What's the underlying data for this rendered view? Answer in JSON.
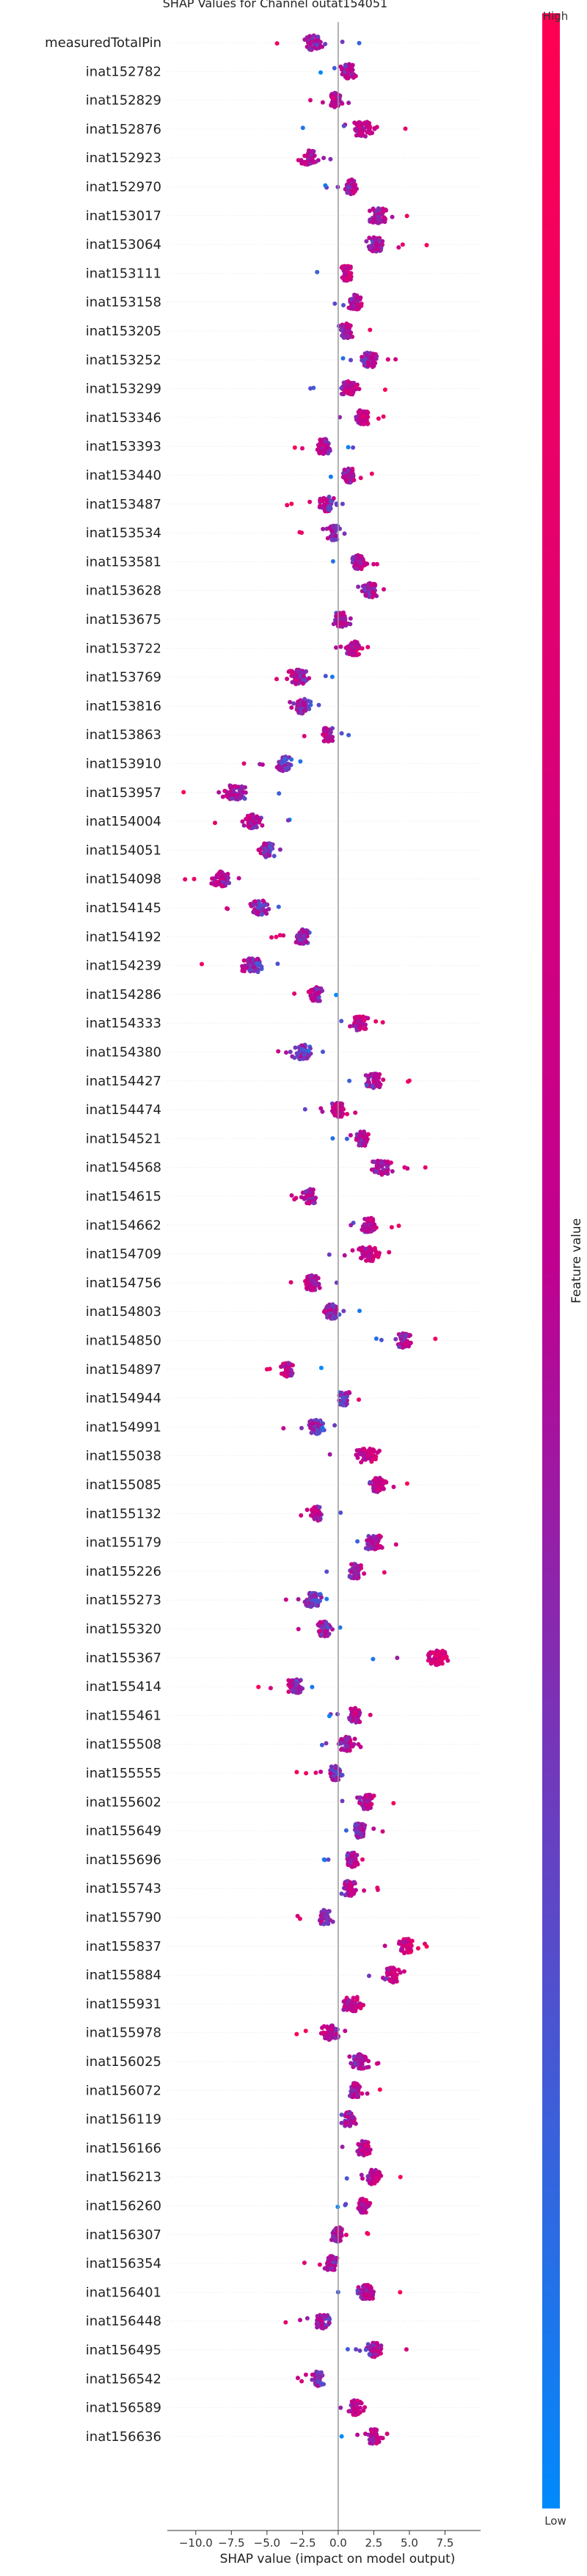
{
  "chart_data": {
    "type": "scatter",
    "subtype": "shap-beeswarm",
    "title": "SHAP Values for Channel outat154051",
    "xlabel": "SHAP value (impact on model output)",
    "xlim": [
      -12,
      10
    ],
    "xticks": [
      -10.0,
      -7.5,
      -5.0,
      -2.5,
      0.0,
      2.5,
      5.0,
      7.5
    ],
    "xtick_labels": [
      "−10.0",
      "−7.5",
      "−5.0",
      "−2.5",
      "0.0",
      "2.5",
      "5.0",
      "7.5"
    ],
    "colorbar": {
      "label": "Feature value",
      "high": "High",
      "low": "Low",
      "high_color": "#ff0052",
      "low_color": "#008afb"
    },
    "features": [
      {
        "name": "measuredTotalPin",
        "center": -1.8,
        "lo": -5.5,
        "hi": 1.5
      },
      {
        "name": "inat152782",
        "center": 0.7,
        "lo": -1.5,
        "hi": 3.2
      },
      {
        "name": "inat152829",
        "center": -0.2,
        "lo": -2.0,
        "hi": 2.0
      },
      {
        "name": "inat152876",
        "center": 1.8,
        "lo": -2.5,
        "hi": 5.3
      },
      {
        "name": "inat152923",
        "center": -2.0,
        "lo": -4.2,
        "hi": 0.5
      },
      {
        "name": "inat152970",
        "center": 0.9,
        "lo": -1.0,
        "hi": 2.8
      },
      {
        "name": "inat153017",
        "center": 2.8,
        "lo": 0.2,
        "hi": 6.0
      },
      {
        "name": "inat153064",
        "center": 2.6,
        "lo": 0.0,
        "hi": 6.5
      },
      {
        "name": "inat153111",
        "center": 0.6,
        "lo": -2.0,
        "hi": 2.0
      },
      {
        "name": "inat153158",
        "center": 1.2,
        "lo": -1.0,
        "hi": 3.2
      },
      {
        "name": "inat153205",
        "center": 0.6,
        "lo": -1.6,
        "hi": 2.5
      },
      {
        "name": "inat153252",
        "center": 2.2,
        "lo": 0.0,
        "hi": 4.5
      },
      {
        "name": "inat153299",
        "center": 0.8,
        "lo": -2.8,
        "hi": 3.3
      },
      {
        "name": "inat153346",
        "center": 1.7,
        "lo": -1.0,
        "hi": 3.5
      },
      {
        "name": "inat153393",
        "center": -1.0,
        "lo": -3.5,
        "hi": 1.5
      },
      {
        "name": "inat153440",
        "center": 0.8,
        "lo": -1.0,
        "hi": 2.5
      },
      {
        "name": "inat153487",
        "center": -0.8,
        "lo": -3.8,
        "hi": 1.5
      },
      {
        "name": "inat153534",
        "center": -0.3,
        "lo": -2.8,
        "hi": 1.0
      },
      {
        "name": "inat153581",
        "center": 1.5,
        "lo": -1.0,
        "hi": 3.5
      },
      {
        "name": "inat153628",
        "center": 2.2,
        "lo": 0.0,
        "hi": 4.8
      },
      {
        "name": "inat153675",
        "center": 0.2,
        "lo": -1.8,
        "hi": 2.5
      },
      {
        "name": "inat153722",
        "center": 1.0,
        "lo": -2.0,
        "hi": 3.2
      },
      {
        "name": "inat153769",
        "center": -2.8,
        "lo": -5.5,
        "hi": 0.0
      },
      {
        "name": "inat153816",
        "center": -2.5,
        "lo": -5.8,
        "hi": -0.5
      },
      {
        "name": "inat153863",
        "center": -0.7,
        "lo": -2.5,
        "hi": 1.0
      },
      {
        "name": "inat153910",
        "center": -3.8,
        "lo": -7.5,
        "hi": -2.5
      },
      {
        "name": "inat153957",
        "center": -7.2,
        "lo": -11.0,
        "hi": -4.0
      },
      {
        "name": "inat154004",
        "center": -6.0,
        "lo": -9.0,
        "hi": -3.0
      },
      {
        "name": "inat154051",
        "center": -5.0,
        "lo": -8.0,
        "hi": -3.2
      },
      {
        "name": "inat154098",
        "center": -8.2,
        "lo": -11.0,
        "hi": -5.0
      },
      {
        "name": "inat154145",
        "center": -5.5,
        "lo": -8.8,
        "hi": -3.5
      },
      {
        "name": "inat154192",
        "center": -2.5,
        "lo": -5.2,
        "hi": -0.5
      },
      {
        "name": "inat154239",
        "center": -6.0,
        "lo": -10.5,
        "hi": -3.5
      },
      {
        "name": "inat154286",
        "center": -1.6,
        "lo": -3.5,
        "hi": 0.0
      },
      {
        "name": "inat154333",
        "center": 1.5,
        "lo": -1.5,
        "hi": 3.4
      },
      {
        "name": "inat154380",
        "center": -2.5,
        "lo": -6.0,
        "hi": -1.0
      },
      {
        "name": "inat154427",
        "center": 2.5,
        "lo": 0.0,
        "hi": 5.5
      },
      {
        "name": "inat154474",
        "center": 0.0,
        "lo": -2.8,
        "hi": 2.0
      },
      {
        "name": "inat154521",
        "center": 1.7,
        "lo": -0.5,
        "hi": 3.5
      },
      {
        "name": "inat154568",
        "center": 3.0,
        "lo": 0.0,
        "hi": 6.2
      },
      {
        "name": "inat154615",
        "center": -2.0,
        "lo": -4.5,
        "hi": 0.0
      },
      {
        "name": "inat154662",
        "center": 2.2,
        "lo": -0.5,
        "hi": 4.5
      },
      {
        "name": "inat154709",
        "center": 2.2,
        "lo": -2.2,
        "hi": 5.0
      },
      {
        "name": "inat154756",
        "center": -1.8,
        "lo": -4.5,
        "hi": 0.8
      },
      {
        "name": "inat154803",
        "center": -0.5,
        "lo": -3.2,
        "hi": 1.5
      },
      {
        "name": "inat154850",
        "center": 4.7,
        "lo": 2.0,
        "hi": 7.5
      },
      {
        "name": "inat154897",
        "center": -3.5,
        "lo": -5.5,
        "hi": -1.0
      },
      {
        "name": "inat154944",
        "center": 0.4,
        "lo": -0.5,
        "hi": 2.0
      },
      {
        "name": "inat154991",
        "center": -1.5,
        "lo": -5.0,
        "hi": 0.0
      },
      {
        "name": "inat155038",
        "center": 2.0,
        "lo": -2.0,
        "hi": 4.5
      },
      {
        "name": "inat155085",
        "center": 2.8,
        "lo": 0.0,
        "hi": 5.0
      },
      {
        "name": "inat155132",
        "center": -1.6,
        "lo": -3.5,
        "hi": 0.5
      },
      {
        "name": "inat155179",
        "center": 2.5,
        "lo": 0.0,
        "hi": 5.2
      },
      {
        "name": "inat155226",
        "center": 1.2,
        "lo": -1.0,
        "hi": 3.5
      },
      {
        "name": "inat155273",
        "center": -1.8,
        "lo": -5.5,
        "hi": 0.0
      },
      {
        "name": "inat155320",
        "center": -1.0,
        "lo": -3.8,
        "hi": 1.0
      },
      {
        "name": "inat155367",
        "center": 7.0,
        "lo": 1.5,
        "hi": 8.8
      },
      {
        "name": "inat155414",
        "center": -3.0,
        "lo": -6.0,
        "hi": -1.0
      },
      {
        "name": "inat155461",
        "center": 1.2,
        "lo": -1.0,
        "hi": 3.0
      },
      {
        "name": "inat155508",
        "center": 0.6,
        "lo": -1.5,
        "hi": 2.8
      },
      {
        "name": "inat155555",
        "center": -0.2,
        "lo": -3.0,
        "hi": 1.2
      },
      {
        "name": "inat155602",
        "center": 2.0,
        "lo": -0.5,
        "hi": 4.5
      },
      {
        "name": "inat155649",
        "center": 1.5,
        "lo": 0.0,
        "hi": 3.8
      },
      {
        "name": "inat155696",
        "center": 1.0,
        "lo": -1.0,
        "hi": 3.0
      },
      {
        "name": "inat155743",
        "center": 0.8,
        "lo": -1.8,
        "hi": 3.2
      },
      {
        "name": "inat155790",
        "center": -1.0,
        "lo": -3.0,
        "hi": 0.5
      },
      {
        "name": "inat155837",
        "center": 4.8,
        "lo": 1.5,
        "hi": 6.3
      },
      {
        "name": "inat155884",
        "center": 3.8,
        "lo": 1.5,
        "hi": 5.5
      },
      {
        "name": "inat155931",
        "center": 1.0,
        "lo": -2.5,
        "hi": 3.2
      },
      {
        "name": "inat155978",
        "center": -0.5,
        "lo": -3.0,
        "hi": 2.5
      },
      {
        "name": "inat156025",
        "center": 1.5,
        "lo": -1.0,
        "hi": 4.0
      },
      {
        "name": "inat156072",
        "center": 1.2,
        "lo": -0.5,
        "hi": 3.0
      },
      {
        "name": "inat156119",
        "center": 0.8,
        "lo": -1.2,
        "hi": 2.8
      },
      {
        "name": "inat156166",
        "center": 1.8,
        "lo": -0.5,
        "hi": 3.5
      },
      {
        "name": "inat156213",
        "center": 2.5,
        "lo": 0.0,
        "hi": 4.5
      },
      {
        "name": "inat156260",
        "center": 1.8,
        "lo": -0.5,
        "hi": 3.5
      },
      {
        "name": "inat156307",
        "center": 0.0,
        "lo": -2.2,
        "hi": 2.2
      },
      {
        "name": "inat156354",
        "center": -0.5,
        "lo": -2.5,
        "hi": 1.0
      },
      {
        "name": "inat156401",
        "center": 2.0,
        "lo": -1.0,
        "hi": 4.5
      },
      {
        "name": "inat156448",
        "center": -1.0,
        "lo": -4.5,
        "hi": 1.0
      },
      {
        "name": "inat156495",
        "center": 2.5,
        "lo": 0.0,
        "hi": 5.3
      },
      {
        "name": "inat156542",
        "center": -1.5,
        "lo": -4.0,
        "hi": 0.0
      },
      {
        "name": "inat156589",
        "center": 1.2,
        "lo": -0.5,
        "hi": 2.5
      },
      {
        "name": "inat156636",
        "center": 2.5,
        "lo": 0.0,
        "hi": 4.5
      }
    ]
  }
}
